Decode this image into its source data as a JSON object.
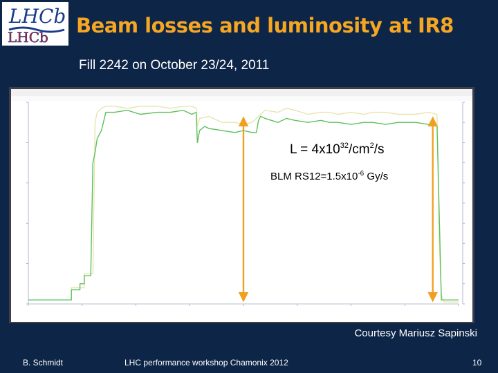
{
  "slide": {
    "title": "Beam losses and luminosity at IR8",
    "subtitle": "Fill 2242 on October 23/24, 2011",
    "courtesy": "Courtesy Mariusz Sapinski",
    "footer": {
      "author": "B. Schmidt",
      "event": "LHC performance workshop Chamonix 2012",
      "page": "10"
    }
  },
  "logo": {
    "name": "LHCb"
  },
  "annotations": {
    "luminosity": {
      "prefix": "L = 4x10",
      "exp": "32",
      "mid": "/cm",
      "exp2": "2",
      "suffix": "/s"
    },
    "blm": {
      "prefix": "BLM RS12=1.5x10",
      "exp": "-6",
      "suffix": " Gy/s"
    }
  },
  "chart_data": {
    "type": "line",
    "colors": {
      "lumi": "#e8e4b0",
      "blm": "#5cc05c",
      "arrow": "#f0a020",
      "background": "#ffffff"
    },
    "series": [
      {
        "key": "lumi",
        "x": [
          0,
          0.1,
          0.1,
          0.13,
          0.13,
          0.15,
          0.155,
          0.16,
          0.17,
          0.18,
          0.2,
          0.23,
          0.26,
          0.3,
          0.33,
          0.36,
          0.38,
          0.39,
          0.393,
          0.398,
          0.42,
          0.45,
          0.48,
          0.5,
          0.52,
          0.55,
          0.58,
          0.6,
          0.62,
          0.65,
          0.68,
          0.7,
          0.72,
          0.75,
          0.78,
          0.8,
          0.83,
          0.86,
          0.9,
          0.93,
          0.95,
          0.955,
          0.96,
          0.965,
          1.0
        ],
        "y": [
          0.02,
          0.02,
          0.08,
          0.08,
          0.15,
          0.15,
          0.9,
          0.95,
          0.97,
          0.98,
          0.98,
          0.97,
          0.98,
          0.98,
          0.97,
          0.98,
          0.98,
          0.97,
          0.88,
          0.92,
          0.93,
          0.9,
          0.9,
          0.89,
          0.9,
          0.96,
          0.95,
          0.97,
          0.96,
          0.94,
          0.95,
          0.95,
          0.94,
          0.95,
          0.94,
          0.95,
          0.95,
          0.94,
          0.94,
          0.95,
          0.94,
          0.3,
          0.05,
          0.01,
          0.01
        ]
      },
      {
        "key": "blm",
        "x": [
          0,
          0.1,
          0.1,
          0.12,
          0.12,
          0.13,
          0.13,
          0.145,
          0.15,
          0.155,
          0.16,
          0.17,
          0.18,
          0.2,
          0.23,
          0.26,
          0.3,
          0.33,
          0.36,
          0.38,
          0.39,
          0.393,
          0.398,
          0.41,
          0.42,
          0.45,
          0.48,
          0.5,
          0.52,
          0.53,
          0.535,
          0.54,
          0.55,
          0.58,
          0.6,
          0.62,
          0.65,
          0.68,
          0.7,
          0.72,
          0.75,
          0.78,
          0.8,
          0.83,
          0.86,
          0.9,
          0.93,
          0.95,
          0.955,
          0.96,
          1.0
        ],
        "y": [
          0.02,
          0.02,
          0.07,
          0.07,
          0.1,
          0.1,
          0.14,
          0.14,
          0.7,
          0.75,
          0.82,
          0.86,
          0.95,
          0.95,
          0.96,
          0.94,
          0.95,
          0.95,
          0.96,
          0.94,
          0.95,
          0.8,
          0.86,
          0.88,
          0.87,
          0.86,
          0.85,
          0.86,
          0.85,
          0.85,
          0.91,
          0.93,
          0.92,
          0.9,
          0.92,
          0.91,
          0.9,
          0.91,
          0.9,
          0.9,
          0.89,
          0.9,
          0.9,
          0.89,
          0.9,
          0.9,
          0.89,
          0.88,
          0.45,
          0.02,
          0.02
        ]
      }
    ],
    "markers": [
      {
        "key": "start",
        "x": 0.5
      },
      {
        "key": "end",
        "x": 0.94
      }
    ],
    "xlim": [
      0,
      1
    ],
    "ylim": [
      0,
      1
    ],
    "grid": false
  }
}
